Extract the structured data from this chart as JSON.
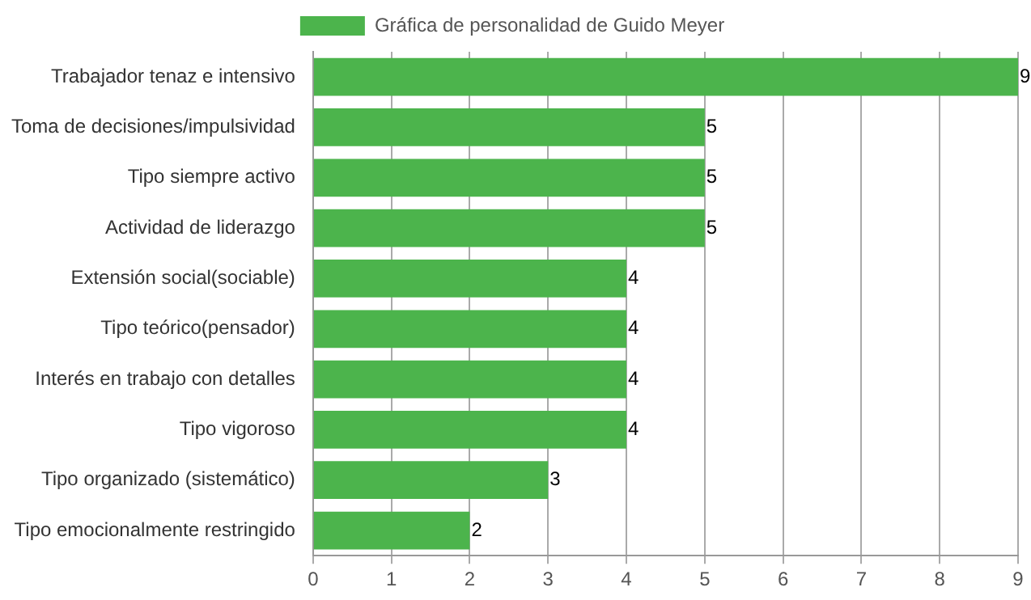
{
  "chart_data": {
    "type": "bar",
    "orientation": "horizontal",
    "categories": [
      "Trabajador tenaz e intensivo",
      "Toma de decisiones/impulsividad",
      "Tipo siempre activo",
      "Actividad de liderazgo",
      "Extensión social(sociable)",
      "Tipo teórico(pensador)",
      "Interés en trabajo con detalles",
      "Tipo vigoroso",
      "Tipo organizado (sistemático)",
      "Tipo emocionalmente restringido"
    ],
    "series": [
      {
        "name": "Gráfica de personalidad de Guido Meyer",
        "color": "#4cb44c",
        "values": [
          9,
          5,
          5,
          5,
          4,
          4,
          4,
          4,
          3,
          2
        ]
      }
    ],
    "xlim": [
      0,
      9
    ],
    "xticks": [
      0,
      1,
      2,
      3,
      4,
      5,
      6,
      7,
      8,
      9
    ],
    "grid": "x",
    "legend": "top",
    "data_labels": true
  }
}
